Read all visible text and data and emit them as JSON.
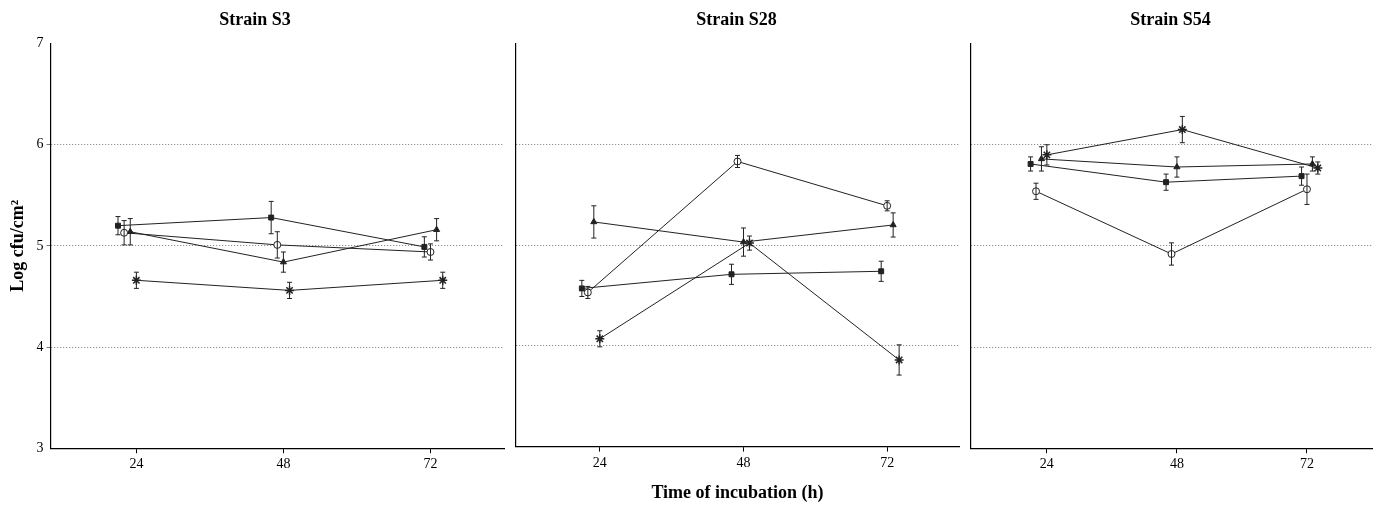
{
  "chart_data": [
    {
      "type": "line",
      "title": "Strain S3",
      "ylabel": "Log cfu/cm²",
      "xlim": [
        10,
        84
      ],
      "xticks": [
        24,
        48,
        72
      ],
      "ylim": [
        3,
        7
      ],
      "yticks": [
        3,
        4,
        5,
        6,
        7
      ],
      "grid": "y",
      "line_style": "solid",
      "series": [
        {
          "color": "#222222",
          "marker": "square",
          "x": [
            21,
            46,
            71
          ],
          "values": [
            5.2,
            5.28,
            4.99
          ],
          "errors": [
            0.09,
            0.16,
            0.1
          ]
        },
        {
          "color": "#222222",
          "marker": "circle",
          "x": [
            22,
            47,
            72
          ],
          "values": [
            5.13,
            5.01,
            4.94
          ],
          "errors": [
            0.12,
            0.13,
            0.08
          ]
        },
        {
          "color": "#222222",
          "marker": "triangle",
          "x": [
            23,
            48,
            73
          ],
          "values": [
            5.14,
            4.84,
            5.16
          ],
          "errors": [
            0.13,
            0.1,
            0.11
          ]
        },
        {
          "color": "#222222",
          "marker": "cross",
          "x": [
            24,
            49,
            74
          ],
          "values": [
            4.66,
            4.56,
            4.66
          ],
          "errors": [
            0.08,
            0.08,
            0.08
          ]
        }
      ]
    },
    {
      "type": "line",
      "title": "Strain S28",
      "xlabel": "Time of incubation (h)",
      "xlim": [
        10,
        84
      ],
      "xticks": [
        24,
        48,
        72
      ],
      "ylim": [
        3,
        7
      ],
      "yticks": [
        3,
        4,
        5,
        6,
        7
      ],
      "grid": "y",
      "tick_labels": "x",
      "line_style": "solid",
      "series": [
        {
          "color": "#222222",
          "marker": "square",
          "x": [
            21,
            46,
            71
          ],
          "values": [
            4.57,
            4.71,
            4.74
          ],
          "errors": [
            0.08,
            0.1,
            0.1
          ]
        },
        {
          "color": "#222222",
          "marker": "circle",
          "x": [
            22,
            47,
            72
          ],
          "values": [
            4.53,
            5.83,
            5.39
          ],
          "errors": [
            0.06,
            0.06,
            0.05
          ]
        },
        {
          "color": "#222222",
          "marker": "triangle",
          "x": [
            23,
            48,
            73
          ],
          "values": [
            5.23,
            5.03,
            5.2
          ],
          "errors": [
            0.16,
            0.14,
            0.12
          ]
        },
        {
          "color": "#222222",
          "marker": "cross",
          "x": [
            24,
            49,
            74
          ],
          "values": [
            4.07,
            5.02,
            3.86
          ],
          "errors": [
            0.08,
            0.07,
            0.15
          ]
        }
      ]
    },
    {
      "type": "line",
      "title": "Strain S54",
      "xlim": [
        10,
        84
      ],
      "xticks": [
        24,
        48,
        72
      ],
      "ylim": [
        3,
        7
      ],
      "yticks": [
        3,
        4,
        5,
        6,
        7
      ],
      "grid": "y",
      "tick_labels": "x",
      "line_style": "solid",
      "series": [
        {
          "color": "#222222",
          "marker": "square",
          "x": [
            21,
            46,
            71
          ],
          "values": [
            5.81,
            5.63,
            5.69
          ],
          "errors": [
            0.07,
            0.08,
            0.09
          ]
        },
        {
          "color": "#222222",
          "marker": "circle",
          "x": [
            22,
            47,
            72
          ],
          "values": [
            5.54,
            4.92,
            5.56
          ],
          "errors": [
            0.08,
            0.11,
            0.15
          ]
        },
        {
          "color": "#222222",
          "marker": "triangle",
          "x": [
            23,
            48,
            73
          ],
          "values": [
            5.86,
            5.78,
            5.81
          ],
          "errors": [
            0.12,
            0.1,
            0.07
          ]
        },
        {
          "color": "#222222",
          "marker": "cross",
          "x": [
            24,
            49,
            74
          ],
          "values": [
            5.9,
            6.15,
            5.77
          ],
          "errors": [
            0.1,
            0.13,
            0.06
          ]
        }
      ]
    }
  ]
}
